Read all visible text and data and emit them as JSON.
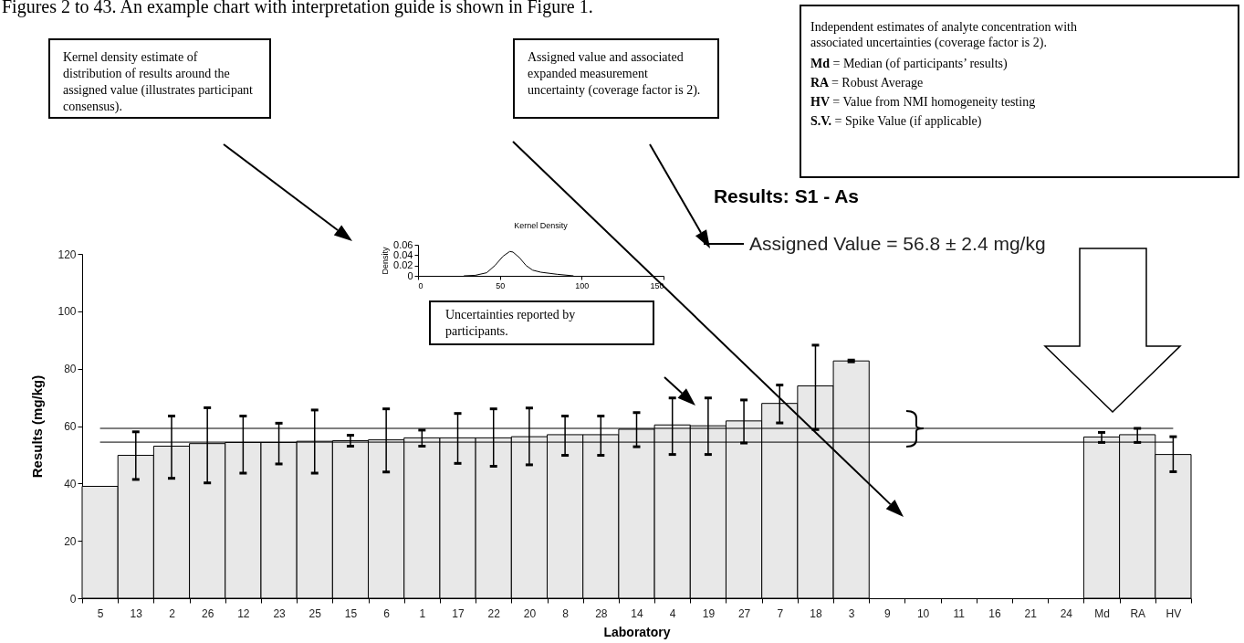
{
  "chart_data": [
    {
      "type": "bar",
      "title": "Results: S1 - As",
      "xlabel": "Laboratory",
      "ylabel": "Results (mg/kg)",
      "categories": [
        "5",
        "13",
        "2",
        "26",
        "12",
        "23",
        "25",
        "15",
        "6",
        "1",
        "17",
        "22",
        "20",
        "8",
        "28",
        "14",
        "4",
        "19",
        "27",
        "7",
        "18",
        "3",
        "9",
        "10",
        "11",
        "16",
        "21",
        "24",
        "Md",
        "RA",
        "HV"
      ],
      "values": [
        39,
        49.8,
        53,
        53.9,
        54.3,
        54.3,
        54.7,
        54.9,
        55.2,
        55.9,
        55.9,
        55.9,
        56.3,
        57,
        57,
        58.9,
        60.4,
        60.1,
        61.8,
        67.9,
        74,
        82.7,
        null,
        null,
        null,
        null,
        null,
        null,
        56.2,
        57,
        50.1
      ],
      "errors": [
        null,
        [
          41.4,
          58
        ],
        [
          41.8,
          63.5
        ],
        [
          40.2,
          66.4
        ],
        [
          43.6,
          63.5
        ],
        [
          46.8,
          61
        ],
        [
          43.6,
          65.6
        ],
        [
          53,
          56.8
        ],
        [
          44,
          66
        ],
        [
          53,
          58.6
        ],
        [
          47,
          64.4
        ],
        [
          46,
          66
        ],
        [
          46.5,
          66.3
        ],
        [
          49.8,
          63.5
        ],
        [
          49.8,
          63.5
        ],
        [
          52.8,
          64.7
        ],
        [
          50.1,
          69.8
        ],
        [
          50.1,
          69.8
        ],
        [
          54.1,
          69.1
        ],
        [
          61.1,
          74.3
        ],
        [
          58.8,
          88.2
        ],
        [
          82.4,
          83
        ],
        null,
        null,
        null,
        null,
        null,
        null,
        [
          54.3,
          57.8
        ],
        [
          54.3,
          59.2
        ],
        [
          44.1,
          56.3
        ]
      ],
      "color": "#e8e8e8",
      "ylim": [
        0,
        120
      ],
      "yticks": [
        0,
        20,
        40,
        60,
        80,
        100,
        120
      ],
      "ref_lines": [
        {
          "axis": "y",
          "value": 54.4
        },
        {
          "axis": "y",
          "value": 59.2
        }
      ],
      "annotations": [
        "Figures 2 to 43. An example chart with interpretation guide is shown in Figure 1.",
        "Kernel density estimate of distribution of results around the assigned value (illustrates participant consensus).",
        "Assigned value and associated expanded measurement uncertainty (coverage factor is 2).",
        "Independent estimates of analyte concentration with associated uncertainties (coverage factor is 2).",
        "Md = Median (of participants’ results)",
        "RA = Robust Average",
        "HV = Value from NMI homogeneity testing",
        "S.V. = Spike Value (if applicable)",
        "Uncertainties reported by participants.",
        "Assigned Value = 56.8 ± 2.4 mg/kg"
      ]
    },
    {
      "type": "line",
      "title": "Kernel Density",
      "ylabel": "Density",
      "color": "#000000",
      "x": [
        28,
        35,
        42,
        47,
        52,
        56,
        58,
        62,
        66,
        70,
        75,
        85,
        95
      ],
      "values": [
        0,
        0.001,
        0.006,
        0.02,
        0.038,
        0.047,
        0.046,
        0.035,
        0.02,
        0.011,
        0.007,
        0.003,
        0
      ],
      "xlim": [
        0,
        150
      ],
      "xticks": [
        0,
        50,
        100,
        150
      ],
      "ylim": [
        0,
        0.06
      ],
      "yticks": [
        0,
        0.02,
        0.04,
        0.06
      ]
    }
  ]
}
